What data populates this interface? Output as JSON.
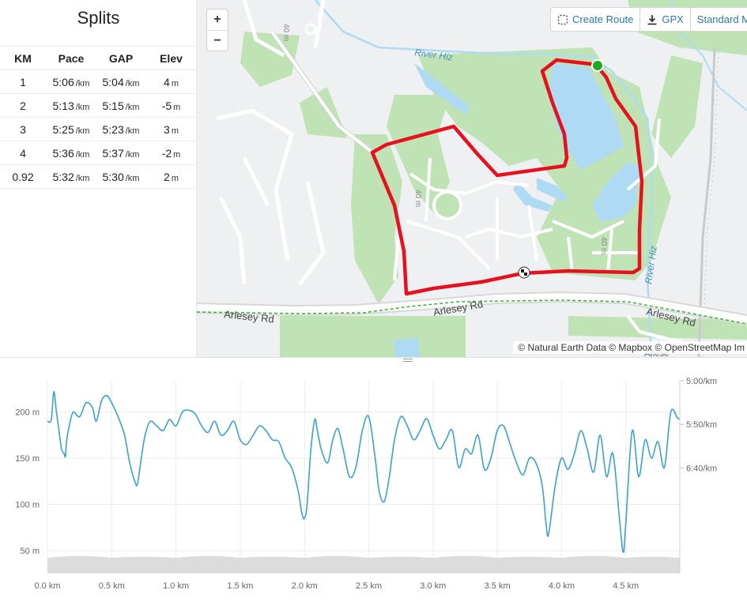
{
  "splits": {
    "title": "Splits",
    "headers": [
      "KM",
      "Pace",
      "GAP",
      "Elev"
    ],
    "rows": [
      {
        "km": "1",
        "pace": "5:06",
        "pace_unit": "/km",
        "gap": "5:04",
        "gap_unit": "/km",
        "elev": "4",
        "elev_unit": "m"
      },
      {
        "km": "2",
        "pace": "5:13",
        "pace_unit": "/km",
        "gap": "5:15",
        "gap_unit": "/km",
        "elev": "-5",
        "elev_unit": "m"
      },
      {
        "km": "3",
        "pace": "5:25",
        "pace_unit": "/km",
        "gap": "5:23",
        "gap_unit": "/km",
        "elev": "3",
        "elev_unit": "m"
      },
      {
        "km": "4",
        "pace": "5:36",
        "pace_unit": "/km",
        "gap": "5:37",
        "gap_unit": "/km",
        "elev": "-2",
        "elev_unit": "m"
      },
      {
        "km": "0.92",
        "pace": "5:32",
        "pace_unit": "/km",
        "gap": "5:30",
        "gap_unit": "/km",
        "elev": "2",
        "elev_unit": "m"
      }
    ]
  },
  "map": {
    "zoom_in_label": "+",
    "zoom_out_label": "−",
    "toolbar": {
      "create_route_label": "Create Route",
      "gpx_label": "GPX",
      "map_style_label": "Standard Ma"
    },
    "labels": {
      "river_north": "River Hiz",
      "river_east": "River Hiz",
      "road_west": "Arlesey Rd",
      "road_mid": "Arlesey Rd",
      "road_east": "Arlesey Rd",
      "contour_1": "40 m",
      "contour_2": "40 m",
      "contour_3": "40 m",
      "place_bottom": "Arlese"
    },
    "attribution": "© Natural Earth Data © Mapbox © OpenStreetMap Im",
    "colors": {
      "route": "#e8101e",
      "start": "#21a821",
      "park": "#bfe3b4",
      "water": "#aedbf3",
      "road": "#ffffff",
      "railway_dash": "#2fb82f"
    },
    "icons": {
      "create_route": "dotted-route-icon",
      "gpx": "download-icon",
      "start": "start-marker-icon",
      "finish": "checkered-flag-icon"
    }
  },
  "chart_data": {
    "type": "line",
    "title": "",
    "xlabel": "",
    "ylabel": "",
    "xlim": [
      0,
      4.92
    ],
    "x_ticks": [
      "0.0 km",
      "0.5 km",
      "1.0 km",
      "1.5 km",
      "2.0 km",
      "2.5 km",
      "3.0 km",
      "3.5 km",
      "4.0 km",
      "4.5 km"
    ],
    "x_tick_values": [
      0,
      0.5,
      1.0,
      1.5,
      2.0,
      2.5,
      3.0,
      3.5,
      4.0,
      4.5
    ],
    "y_left_ticks": [
      "200 m",
      "150 m",
      "100 m",
      "50 m"
    ],
    "y_left_tick_values": [
      200,
      150,
      100,
      50
    ],
    "y_right_ticks": [
      "5:00/km",
      "5:50/km",
      "6:40/km"
    ],
    "pace_axis": {
      "top_sec_per_km": 300,
      "bottom_sec_per_km": 520
    },
    "series": [
      {
        "color": "#3aa3c9",
        "x": [
          0,
          0.03,
          0.05,
          0.07,
          0.09,
          0.11,
          0.13,
          0.14,
          0.15,
          0.17,
          0.2,
          0.25,
          0.3,
          0.35,
          0.38,
          0.42,
          0.46,
          0.5,
          0.55,
          0.6,
          0.64,
          0.68,
          0.7,
          0.73,
          0.76,
          0.8,
          0.85,
          0.9,
          0.95,
          1.0,
          1.05,
          1.1,
          1.15,
          1.2,
          1.25,
          1.3,
          1.35,
          1.4,
          1.45,
          1.5,
          1.55,
          1.6,
          1.65,
          1.7,
          1.75,
          1.8,
          1.85,
          1.9,
          1.95,
          1.98,
          2.0,
          2.02,
          2.05,
          2.08,
          2.1,
          2.13,
          2.18,
          2.22,
          2.26,
          2.3,
          2.35,
          2.4,
          2.45,
          2.5,
          2.55,
          2.58,
          2.62,
          2.66,
          2.7,
          2.75,
          2.8,
          2.85,
          2.9,
          2.95,
          3.0,
          3.05,
          3.1,
          3.15,
          3.2,
          3.25,
          3.3,
          3.35,
          3.4,
          3.45,
          3.5,
          3.55,
          3.6,
          3.65,
          3.7,
          3.75,
          3.8,
          3.85,
          3.88,
          3.9,
          3.95,
          4.0,
          4.05,
          4.1,
          4.15,
          4.2,
          4.25,
          4.3,
          4.35,
          4.4,
          4.45,
          4.48,
          4.5,
          4.55,
          4.6,
          4.65,
          4.7,
          4.75,
          4.8,
          4.85,
          4.9,
          4.92
        ],
        "values": [
          190,
          192,
          222,
          200,
          180,
          160,
          155,
          152,
          170,
          185,
          200,
          195,
          210,
          205,
          190,
          212,
          218,
          210,
          195,
          175,
          145,
          125,
          122,
          150,
          175,
          190,
          185,
          180,
          192,
          185,
          200,
          202,
          198,
          185,
          178,
          190,
          175,
          180,
          190,
          170,
          165,
          175,
          185,
          180,
          170,
          168,
          150,
          140,
          115,
          90,
          85,
          100,
          160,
          192,
          180,
          160,
          145,
          170,
          182,
          160,
          130,
          140,
          180,
          195,
          150,
          115,
          103,
          130,
          170,
          195,
          185,
          170,
          180,
          193,
          175,
          160,
          170,
          180,
          140,
          160,
          155,
          175,
          138,
          150,
          180,
          185,
          165,
          145,
          132,
          150,
          145,
          120,
          78,
          68,
          120,
          150,
          138,
          155,
          180,
          160,
          135,
          175,
          130,
          155,
          85,
          48,
          80,
          180,
          130,
          170,
          150,
          168,
          140,
          200,
          194,
          192
        ],
        "pace_fill_sec_per_km": 503
      }
    ]
  }
}
